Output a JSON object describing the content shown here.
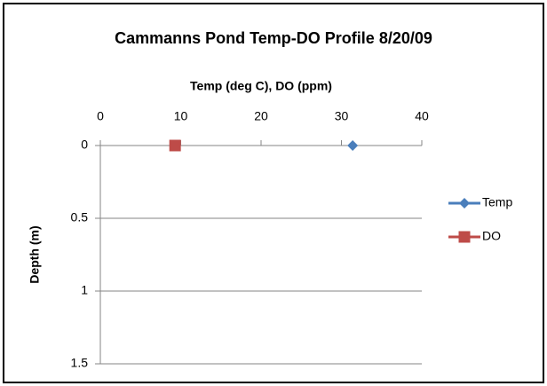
{
  "chart_data": {
    "type": "scatter",
    "title": "Cammanns Pond Temp-DO Profile 8/20/09",
    "x_label": "Temp (deg C), DO (ppm)",
    "y_label": "Depth (m)",
    "series": [
      {
        "name": "Temp",
        "color": "#4a7ebb",
        "marker": "diamond",
        "x": [
          31.4
        ],
        "values": [
          0
        ]
      },
      {
        "name": "DO",
        "color": "#be4b48",
        "marker": "square",
        "x": [
          9.3
        ],
        "values": [
          0
        ]
      }
    ],
    "xlim": [
      0,
      40
    ],
    "xticks": [
      0,
      10,
      20,
      30,
      40
    ],
    "x_axis_position": "top",
    "ylim": [
      0,
      1.5
    ],
    "yticks": [
      0,
      0.5,
      1,
      1.5
    ],
    "y_reversed": true,
    "grid": true,
    "legend": "right"
  }
}
